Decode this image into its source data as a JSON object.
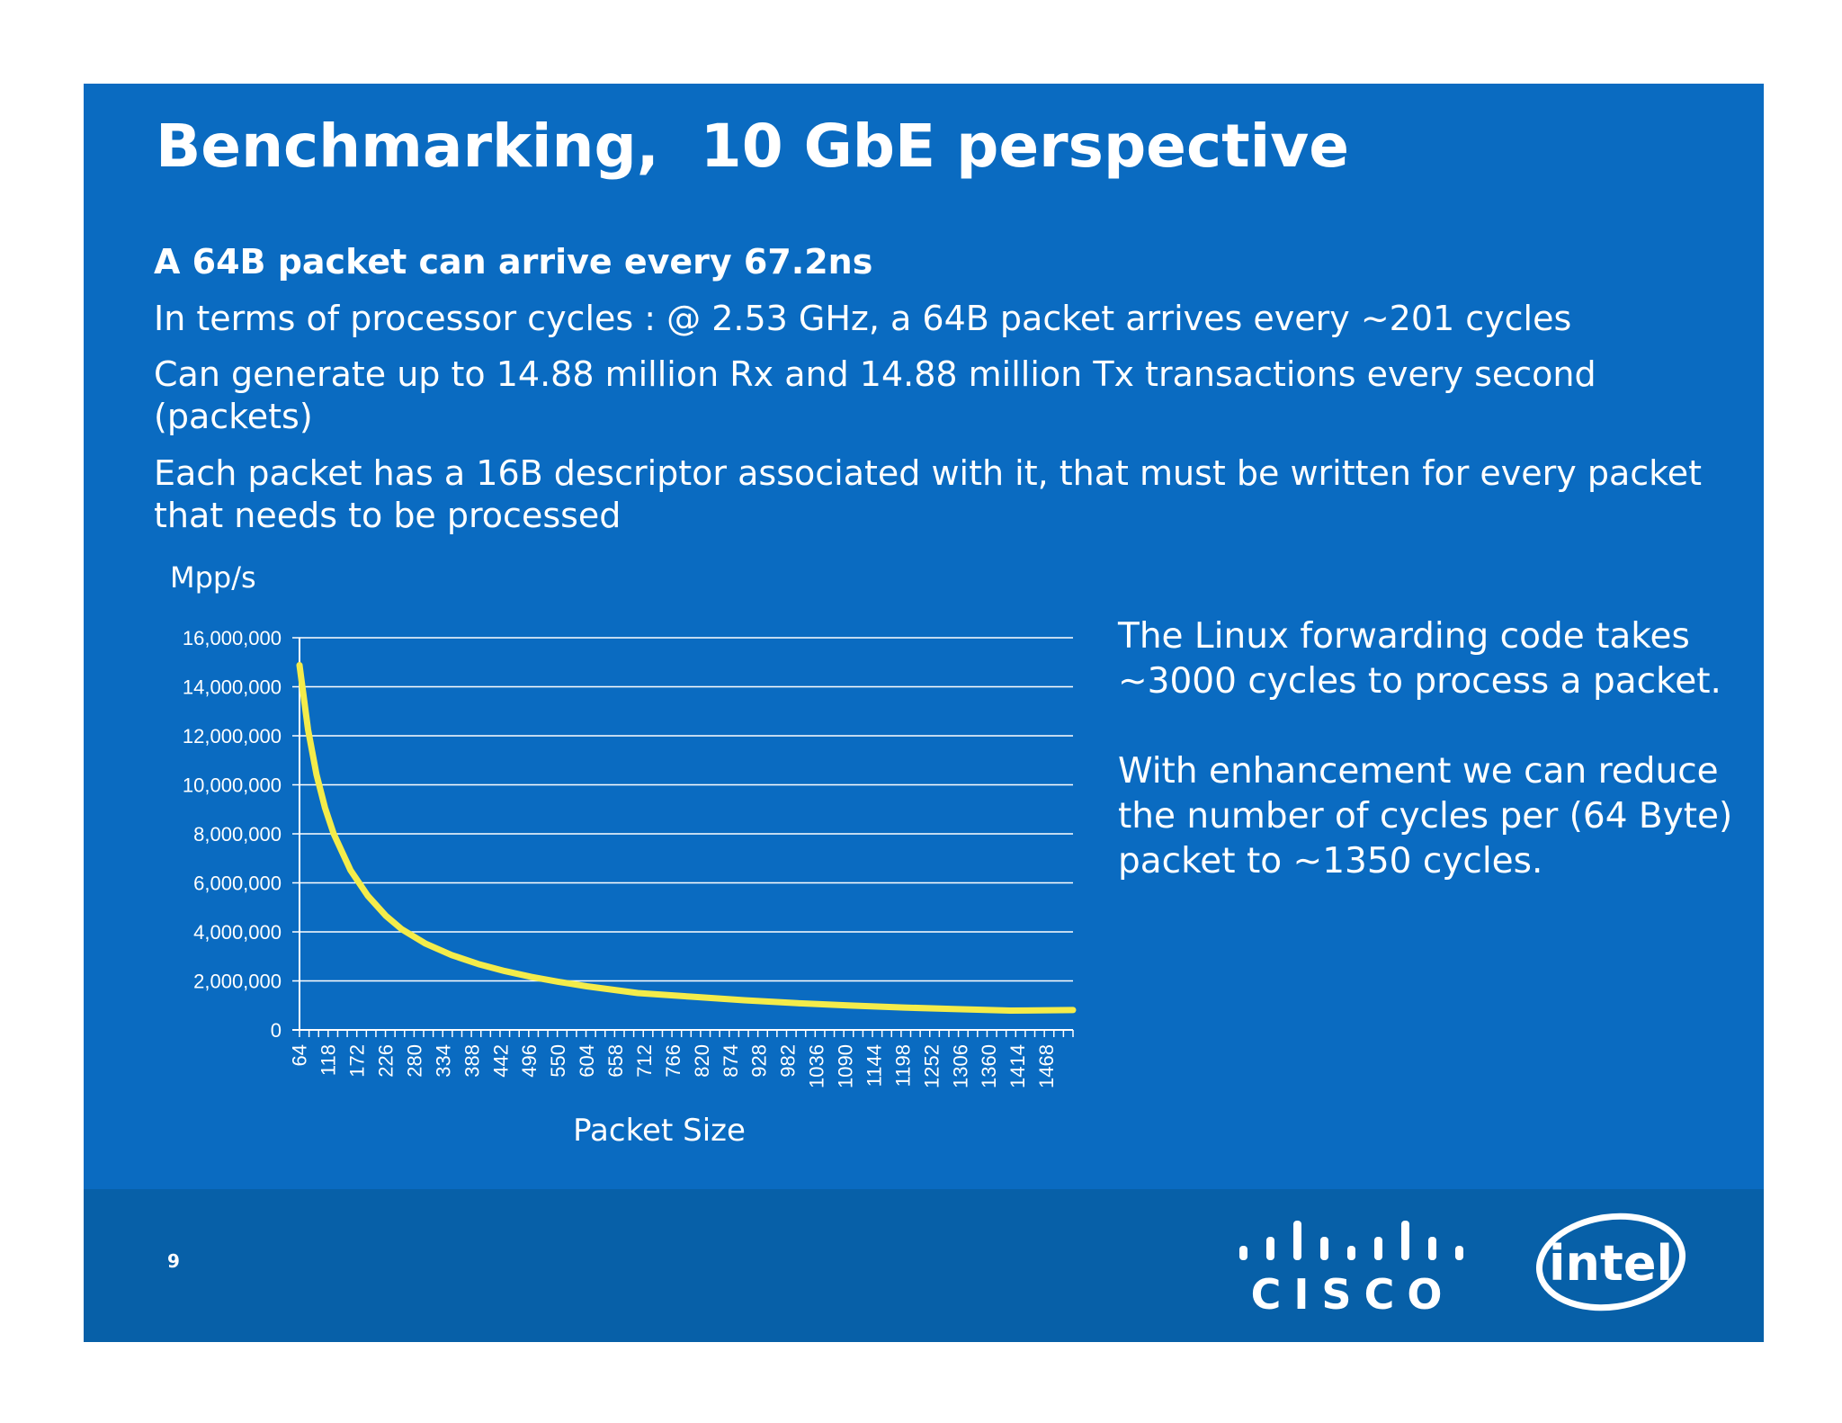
{
  "slide": {
    "title": "Benchmarking,  10 GbE perspective",
    "bullets": [
      "A 64B packet can arrive every 67.2ns",
      "In terms of processor cycles : @ 2.53 GHz, a 64B packet arrives every ~201 cycles",
      "Can generate up to 14.88 million Rx and 14.88 million Tx transactions every second (packets)",
      "Each packet has a 16B descriptor associated with it, that must be written for every packet that needs to be processed"
    ],
    "side_text": [
      "The Linux forwarding code takes ~3000 cycles to process a packet.",
      "With enhancement we can reduce the number of cycles per (64 Byte) packet to ~1350 cycles."
    ],
    "page_number": "9",
    "logos": {
      "cisco": "CISCO",
      "intel": "intel",
      "cisco_icon": "cisco-bars-icon",
      "intel_icon": "intel-swoosh-icon"
    }
  },
  "colors": {
    "background": "#0a6bc1",
    "footer": "#0760a8",
    "text": "#ffffff",
    "series": "#f4ec4a"
  },
  "chart_data": {
    "type": "line",
    "title": "",
    "ylabel": "Mpp/s",
    "xlabel": "Packet Size",
    "ylim": [
      0,
      16000000
    ],
    "yticks": [
      0,
      2000000,
      4000000,
      6000000,
      8000000,
      10000000,
      12000000,
      14000000,
      16000000
    ],
    "ytick_labels": [
      "0",
      "2,000,000",
      "4,000,000",
      "6,000,000",
      "8,000,000",
      "10,000,000",
      "12,000,000",
      "14,000,000",
      "16,000,000"
    ],
    "categories": [
      "64",
      "118",
      "172",
      "226",
      "280",
      "334",
      "388",
      "442",
      "496",
      "550",
      "604",
      "658",
      "712",
      "766",
      "820",
      "874",
      "928",
      "982",
      "1036",
      "1090",
      "1144",
      "1198",
      "1252",
      "1306",
      "1360",
      "1414",
      "1468"
    ],
    "x_range": [
      64,
      1518
    ],
    "grid": true,
    "legend": "none",
    "series": [
      {
        "x": [
          64,
          80,
          96,
          112,
          128,
          160,
          192,
          226,
          256,
          300,
          350,
          400,
          450,
          500,
          550,
          604,
          700,
          800,
          900,
          1000,
          1100,
          1200,
          1300,
          1400,
          1518
        ],
        "values": [
          14880952,
          12254902,
          10416667,
          9057971,
          8012821,
          6510417,
          5482456,
          4664179,
          4111842,
          3531073,
          3054990,
          2689873,
          2398721,
          2163062,
          1968504,
          1779359,
          1504332,
          1358696,
          1209677,
          1091703,
          995223,
          914634,
          846560,
          788146,
          812744
        ]
      }
    ]
  }
}
